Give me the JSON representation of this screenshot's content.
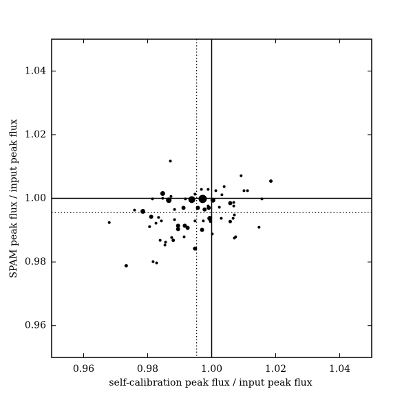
{
  "chart_data": {
    "type": "scatter",
    "xlabel": "self-calibration peak flux / input peak flux",
    "ylabel": "SPAM peak flux / input peak flux",
    "xlim": [
      0.95,
      1.05
    ],
    "ylim": [
      0.95,
      1.05
    ],
    "xticks": [
      0.96,
      0.98,
      {
        "value": 1.0,
        "label": "1.00"
      },
      1.02,
      1.04
    ],
    "yticks": [
      0.96,
      0.98,
      {
        "value": 1.0,
        "label": "1.00"
      },
      1.02,
      1.04
    ],
    "vlines": [
      {
        "value": 1.0,
        "style": "solid"
      },
      {
        "value": 0.9953,
        "style": "dotted"
      }
    ],
    "hlines": [
      {
        "value": 1.0,
        "style": "solid"
      },
      {
        "value": 0.9955,
        "style": "dotted"
      }
    ],
    "series": [
      {
        "color": "#000000",
        "x": [
          0.9871,
          1.0092,
          1.0185,
          0.968,
          0.9733,
          0.9817,
          0.9828,
          0.9847,
          0.9866,
          0.9785,
          0.9759,
          0.9811,
          0.9938,
          0.9972,
          0.9948,
          0.9968,
          0.9989,
          1.0013,
          1.0039,
          1.0032,
          1.0058,
          1.0069,
          1.0069,
          1.0101,
          1.0112,
          1.0157,
          1.0148,
          1.0071,
          1.0067,
          1.0058,
          1.003,
          1.0075,
          1.0071,
          1.0002,
          0.9994,
          0.9991,
          0.9978,
          0.9989,
          0.9957,
          0.997,
          0.9948,
          0.9948,
          0.9974,
          0.9996,
          1.0004,
          0.9912,
          0.9916,
          0.9925,
          0.9895,
          0.9895,
          0.9914,
          0.988,
          0.9875,
          0.9856,
          0.9854,
          0.9839,
          0.9843,
          0.9826,
          0.9806,
          0.9847,
          0.9815,
          0.9884,
          0.9884,
          0.9873,
          1.0024,
          0.9918,
          0.9834
        ],
        "values": [
          1.0117,
          1.0071,
          1.0054,
          0.9924,
          0.9788,
          0.9801,
          0.9797,
          1.0015,
          0.9994,
          0.9959,
          0.9963,
          0.9942,
          0.9996,
          0.9998,
          1.0013,
          1.0028,
          1.0028,
          1.0024,
          1.0037,
          1.0011,
          0.9985,
          0.9987,
          0.9976,
          1.0024,
          1.0024,
          0.9998,
          0.9909,
          0.9948,
          0.9937,
          0.9927,
          0.9937,
          0.9879,
          0.9875,
          0.9888,
          0.9937,
          0.997,
          0.9965,
          0.9976,
          0.997,
          0.9901,
          0.9842,
          0.9929,
          0.9929,
          0.9927,
          0.9994,
          0.997,
          0.9914,
          0.9907,
          0.9914,
          0.9903,
          0.9879,
          0.9868,
          0.9877,
          0.9862,
          0.9853,
          0.9868,
          0.9929,
          0.9922,
          0.9911,
          1.0,
          0.9998,
          0.9965,
          0.9933,
          1.0006,
          0.9972,
          0.9998,
          0.994
        ],
        "sizes": [
          2,
          2,
          2.5,
          2,
          2.5,
          2,
          2,
          3.5,
          4,
          3.5,
          2,
          3,
          5,
          6,
          2,
          2,
          2,
          2,
          2,
          2,
          3,
          2,
          2,
          2,
          2,
          2,
          2,
          2,
          2,
          2.5,
          2,
          2,
          2,
          2,
          3.5,
          3,
          3,
          2,
          3,
          3,
          3,
          2,
          2,
          2,
          3.5,
          3,
          3,
          3,
          3,
          3,
          2,
          2.5,
          2,
          2,
          2,
          2,
          2,
          2,
          2,
          2,
          2,
          2,
          2,
          2,
          2,
          2,
          2
        ]
      }
    ]
  }
}
